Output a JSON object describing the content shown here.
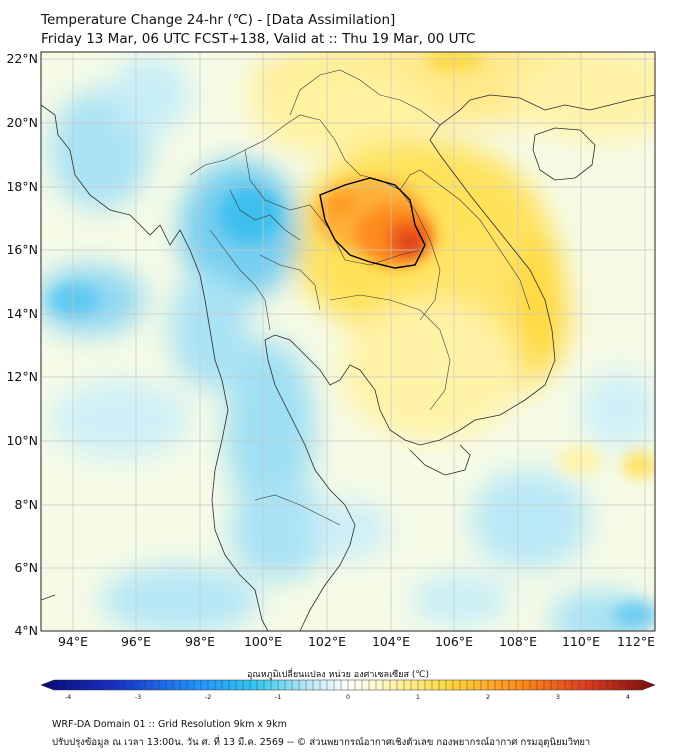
{
  "header": {
    "title_line1": "Temperature Change 24-hr (℃) - [Data Assimilation]",
    "title_line2": "Friday 13 Mar, 06 UTC FCST+138, Valid at :: Thu 19 Mar, 00 UTC"
  },
  "map": {
    "lat_labels": [
      "22°N",
      "20°N",
      "18°N",
      "16°N",
      "14°N",
      "12°N",
      "10°N",
      "8°N",
      "6°N",
      "4°N"
    ],
    "lon_labels": [
      "94°E",
      "96°E",
      "98°E",
      "100°E",
      "102°E",
      "104°E",
      "106°E",
      "108°E",
      "110°E",
      "112°E"
    ]
  },
  "colorbar": {
    "label": "อุณหภูมิเปลี่ยนแปลง หน่วย องศาเซลเซียส (℃)",
    "ticks": [
      "-4",
      "-3",
      "-2",
      "-1",
      "0",
      "1",
      "2",
      "3",
      "4"
    ],
    "colors": {
      "dark_blue": "#08087a",
      "blue": "#1e90ff",
      "cyan": "#33c8f0",
      "light_cyan": "#bfeaf7",
      "white": "#ffffff",
      "light_yellow": "#fff7bf",
      "yellow": "#ffd93d",
      "orange": "#ff8c1a",
      "red": "#e03a1e",
      "dark_red": "#7a0c0c"
    }
  },
  "footer": {
    "line1": "WRF-DA Domain 01 :: Grid Resolution 9km x 9km",
    "line2": "ปรับปรุงข้อมูล ณ เวลา 13:00น. วัน ศ. ที่ 13 มี.ค. 2569 -- © ส่วนพยากรณ์อากาศเชิงตัวเลข กองพยากรณ์อากาศ กรมอุตุนิยมวิทยา"
  }
}
